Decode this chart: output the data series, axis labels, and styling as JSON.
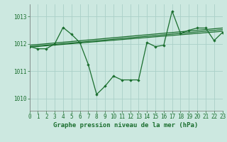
{
  "title": "Graphe pression niveau de la mer (hPa)",
  "bg_color": "#cce8e0",
  "grid_color": "#aad0c8",
  "line_color": "#1a6e2e",
  "xlim": [
    0,
    23
  ],
  "ylim": [
    1009.55,
    1013.45
  ],
  "yticks": [
    1010,
    1011,
    1012,
    1013
  ],
  "xticks": [
    0,
    1,
    2,
    3,
    4,
    5,
    6,
    7,
    8,
    9,
    10,
    11,
    12,
    13,
    14,
    15,
    16,
    17,
    18,
    19,
    20,
    21,
    22,
    23
  ],
  "series1": [
    1011.9,
    1011.82,
    1011.82,
    1012.0,
    1012.6,
    1012.35,
    1012.05,
    1011.25,
    1010.15,
    1010.45,
    1010.82,
    1010.68,
    1010.68,
    1010.68,
    1012.05,
    1011.9,
    1011.95,
    1013.2,
    1012.38,
    1012.5,
    1012.58,
    1012.58,
    1012.12,
    1012.42
  ],
  "trend1_x": [
    0,
    23
  ],
  "trend1_y": [
    1011.9,
    1012.52
  ],
  "trend2_x": [
    0,
    23
  ],
  "trend2_y": [
    1011.95,
    1012.58
  ],
  "trend3_x": [
    0,
    23
  ],
  "trend3_y": [
    1011.88,
    1012.46
  ]
}
